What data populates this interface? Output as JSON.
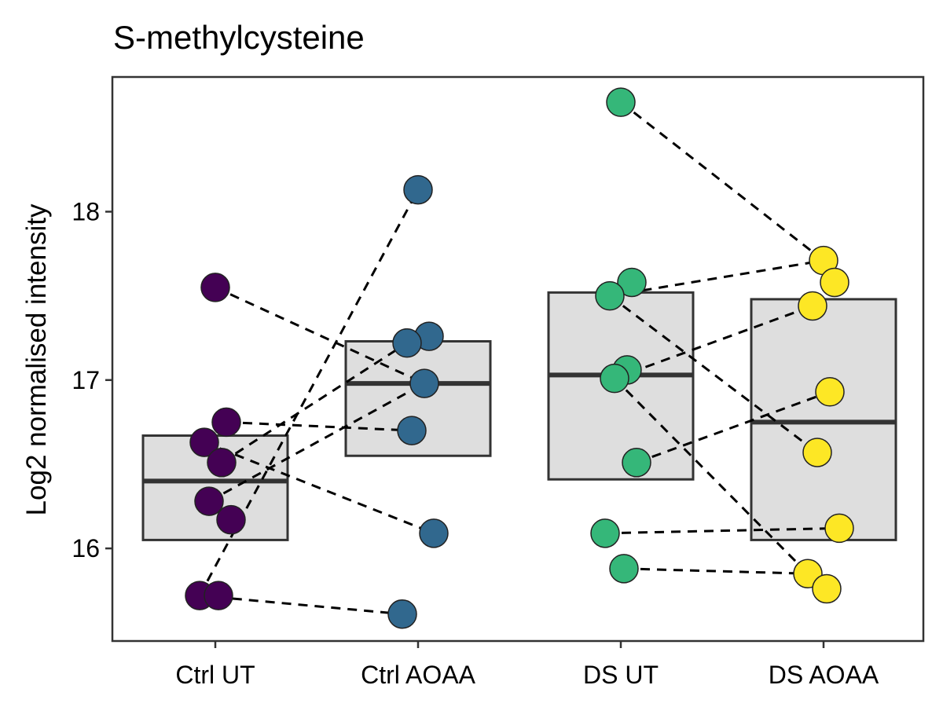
{
  "chart_data": {
    "type": "box",
    "title": "S-methylcysteine",
    "xlabel": "",
    "ylabel": "Log2 normalised intensity",
    "categories": [
      "Ctrl UT",
      "Ctrl AOAA",
      "DS UT",
      "DS AOAA"
    ],
    "yticks": [
      16,
      17,
      18
    ],
    "ylim": [
      15.45,
      18.8
    ],
    "grid": false,
    "legend": "none",
    "colors": [
      "#440154",
      "#31688E",
      "#35B779",
      "#FDE725"
    ],
    "box_fill": "#DEDEDE",
    "box_stroke": "#333333",
    "connector_color": "#000000",
    "boxes": [
      {
        "category": "Ctrl UT",
        "q1": 16.05,
        "median": 16.4,
        "q3": 16.67
      },
      {
        "category": "Ctrl AOAA",
        "q1": 16.55,
        "median": 16.98,
        "q3": 17.23
      },
      {
        "category": "DS UT",
        "q1": 16.41,
        "median": 17.03,
        "q3": 17.52
      },
      {
        "category": "DS AOAA",
        "q1": 16.05,
        "median": 16.75,
        "q3": 17.48
      }
    ],
    "series": [
      {
        "category": "Ctrl UT",
        "values": [
          17.55,
          16.75,
          16.63,
          16.51,
          16.28,
          16.17,
          15.72,
          15.72
        ]
      },
      {
        "category": "Ctrl AOAA",
        "values": [
          18.13,
          17.26,
          17.22,
          16.98,
          16.7,
          16.09,
          15.61
        ]
      },
      {
        "category": "DS UT",
        "values": [
          18.65,
          17.58,
          17.5,
          17.06,
          17.01,
          16.51,
          16.09,
          15.88
        ]
      },
      {
        "category": "DS AOAA",
        "values": [
          17.71,
          17.58,
          17.44,
          16.93,
          16.57,
          16.12,
          15.85,
          15.76
        ]
      }
    ],
    "pairs": [
      {
        "from": [
          "Ctrl UT",
          17.55
        ],
        "to": [
          "Ctrl AOAA",
          16.98
        ]
      },
      {
        "from": [
          "Ctrl UT",
          16.75
        ],
        "to": [
          "Ctrl AOAA",
          16.7
        ]
      },
      {
        "from": [
          "Ctrl UT",
          16.63
        ],
        "to": [
          "Ctrl AOAA",
          16.09
        ]
      },
      {
        "from": [
          "Ctrl UT",
          16.51
        ],
        "to": [
          "Ctrl AOAA",
          17.22
        ]
      },
      {
        "from": [
          "Ctrl UT",
          16.28
        ],
        "to": [
          "Ctrl AOAA",
          16.98
        ]
      },
      {
        "from": [
          "Ctrl UT",
          15.72
        ],
        "to": [
          "Ctrl AOAA",
          18.13
        ]
      },
      {
        "from": [
          "Ctrl UT",
          15.72
        ],
        "to": [
          "Ctrl AOAA",
          15.61
        ]
      },
      {
        "from": [
          "DS UT",
          18.65
        ],
        "to": [
          "DS AOAA",
          17.71
        ]
      },
      {
        "from": [
          "DS UT",
          17.5
        ],
        "to": [
          "DS AOAA",
          17.71
        ]
      },
      {
        "from": [
          "DS UT",
          17.5
        ],
        "to": [
          "DS AOAA",
          16.57
        ]
      },
      {
        "from": [
          "DS UT",
          17.01
        ],
        "to": [
          "DS AOAA",
          17.44
        ]
      },
      {
        "from": [
          "DS UT",
          17.01
        ],
        "to": [
          "DS AOAA",
          15.85
        ]
      },
      {
        "from": [
          "DS UT",
          16.51
        ],
        "to": [
          "DS AOAA",
          16.93
        ]
      },
      {
        "from": [
          "DS UT",
          16.09
        ],
        "to": [
          "DS AOAA",
          16.12
        ]
      },
      {
        "from": [
          "DS UT",
          15.88
        ],
        "to": [
          "DS AOAA",
          15.85
        ]
      }
    ]
  }
}
